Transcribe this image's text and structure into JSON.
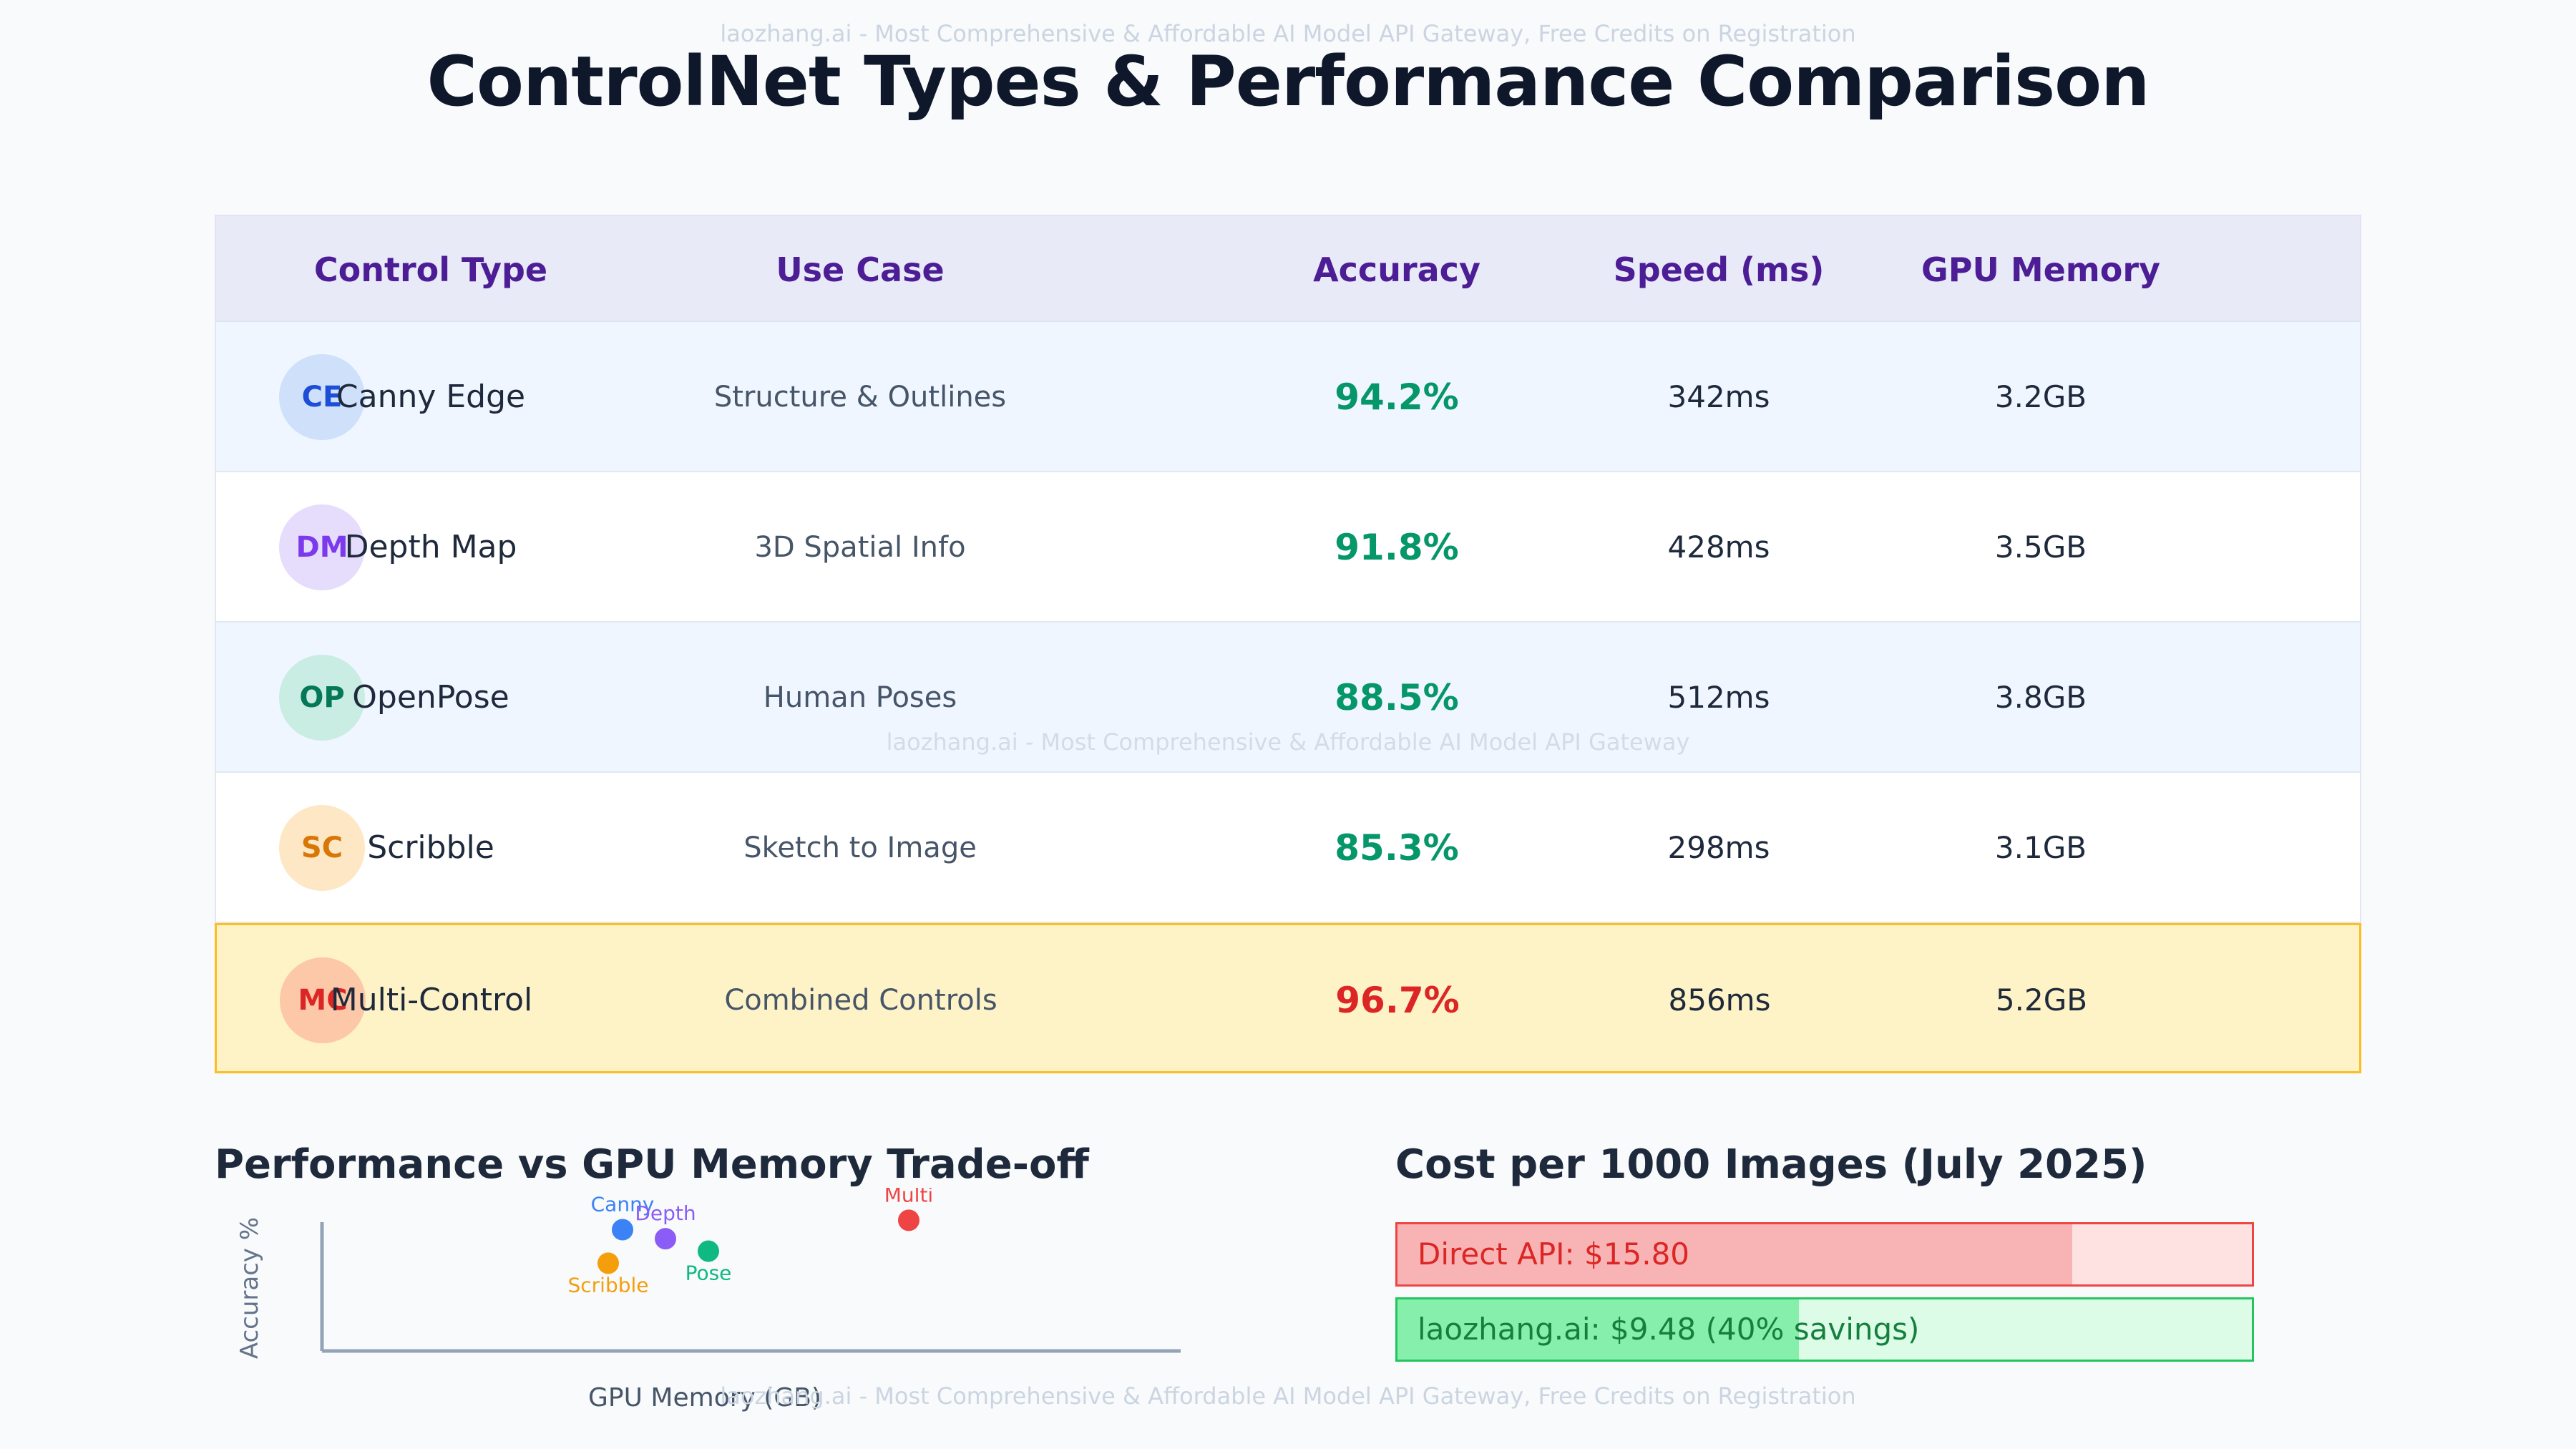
{
  "watermark_top": "laozhang.ai - Most Comprehensive & Affordable AI Model API Gateway, Free Credits on Registration",
  "watermark_mid": "laozhang.ai - Most Comprehensive & Affordable AI Model API Gateway",
  "watermark_bottom": "laozhang.ai - Most Comprehensive & Affordable AI Model API Gateway, Free Credits on Registration",
  "title": "ControlNet Types & Performance Comparison",
  "table": {
    "headers": [
      "Control Type",
      "Use Case",
      "Accuracy",
      "Speed (ms)",
      "GPU Memory"
    ],
    "rows": [
      {
        "abbr": "CE",
        "type": "Canny Edge",
        "use_case": "Structure & Outlines",
        "accuracy": "94.2%",
        "speed": "342ms",
        "memory": "3.2GB",
        "badge_bg": "#cfe0fb",
        "badge_fg": "#1d4ed8"
      },
      {
        "abbr": "DM",
        "type": "Depth Map",
        "use_case": "3D Spatial Info",
        "accuracy": "91.8%",
        "speed": "428ms",
        "memory": "3.5GB",
        "badge_bg": "#e6dcfb",
        "badge_fg": "#7c3aed"
      },
      {
        "abbr": "OP",
        "type": "OpenPose",
        "use_case": "Human Poses",
        "accuracy": "88.5%",
        "speed": "512ms",
        "memory": "3.8GB",
        "badge_bg": "#c9ede2",
        "badge_fg": "#047857"
      },
      {
        "abbr": "SC",
        "type": "Scribble",
        "use_case": "Sketch to Image",
        "accuracy": "85.3%",
        "speed": "298ms",
        "memory": "3.1GB",
        "badge_bg": "#fde7c4",
        "badge_fg": "#d97706"
      },
      {
        "abbr": "MC",
        "type": "Multi-Control",
        "use_case": "Combined Controls",
        "accuracy": "96.7%",
        "speed": "856ms",
        "memory": "5.2GB",
        "badge_bg": "#fcc8a8",
        "badge_fg": "#dc2626"
      }
    ]
  },
  "chart_data": [
    {
      "type": "scatter",
      "title": "Performance vs GPU Memory Trade-off",
      "xlabel": "GPU Memory (GB)",
      "ylabel": "Accuracy %",
      "grid": false,
      "points": [
        {
          "label": "Canny",
          "x": 3.2,
          "y": 94.2,
          "color": "#3b82f6"
        },
        {
          "label": "Depth",
          "x": 3.5,
          "y": 91.8,
          "color": "#8b5cf6"
        },
        {
          "label": "Pose",
          "x": 3.8,
          "y": 88.5,
          "color": "#10b981"
        },
        {
          "label": "Scribble",
          "x": 3.1,
          "y": 85.3,
          "color": "#f59e0b"
        },
        {
          "label": "Multi",
          "x": 5.2,
          "y": 96.7,
          "color": "#ef4444"
        }
      ],
      "xlim": [
        1.1,
        7.1
      ],
      "ylim": [
        62,
        100
      ]
    },
    {
      "type": "bar",
      "title": "Cost per 1000 Images (July 2025)",
      "orientation": "horizontal",
      "bars": [
        {
          "label": "Direct API: $15.80",
          "value": 15.8,
          "fill_fraction": 0.79
        },
        {
          "label": "laozhang.ai: $9.48 (40% savings)",
          "value": 9.48,
          "fill_fraction": 0.47
        }
      ]
    }
  ]
}
